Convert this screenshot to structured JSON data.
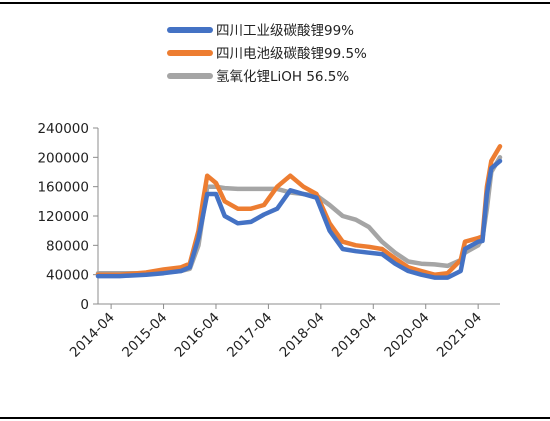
{
  "chart_data": {
    "type": "line",
    "title": "",
    "xlabel": "",
    "ylabel": "",
    "ylim": [
      0,
      240000
    ],
    "xlim": [
      "2014-01",
      "2021-09"
    ],
    "yticks": [
      "0",
      "40000",
      "80000",
      "120000",
      "160000",
      "200000",
      "240000"
    ],
    "xticks": [
      "2014-04",
      "2015-04",
      "2016-04",
      "2017-04",
      "2018-04",
      "2019-04",
      "2020-04",
      "2021-04"
    ],
    "legend_position": "top-center",
    "grid": false,
    "series": [
      {
        "name": "四川工业级碳酸锂99%",
        "color": "#4472C4",
        "points": [
          [
            "2014-01",
            38000
          ],
          [
            "2014-06",
            38000
          ],
          [
            "2014-12",
            40000
          ],
          [
            "2015-04",
            42000
          ],
          [
            "2015-08",
            45000
          ],
          [
            "2015-10",
            50000
          ],
          [
            "2015-12",
            90000
          ],
          [
            "2016-01",
            120000
          ],
          [
            "2016-02",
            150000
          ],
          [
            "2016-04",
            150000
          ],
          [
            "2016-06",
            120000
          ],
          [
            "2016-09",
            110000
          ],
          [
            "2016-12",
            112000
          ],
          [
            "2017-03",
            122000
          ],
          [
            "2017-06",
            130000
          ],
          [
            "2017-09",
            155000
          ],
          [
            "2017-12",
            150000
          ],
          [
            "2018-03",
            145000
          ],
          [
            "2018-06",
            100000
          ],
          [
            "2018-09",
            75000
          ],
          [
            "2018-12",
            72000
          ],
          [
            "2019-03",
            70000
          ],
          [
            "2019-06",
            68000
          ],
          [
            "2019-09",
            55000
          ],
          [
            "2019-12",
            45000
          ],
          [
            "2020-03",
            40000
          ],
          [
            "2020-06",
            36000
          ],
          [
            "2020-09",
            36000
          ],
          [
            "2020-12",
            45000
          ],
          [
            "2021-01",
            75000
          ],
          [
            "2021-04",
            85000
          ],
          [
            "2021-05",
            86000
          ],
          [
            "2021-06",
            150000
          ],
          [
            "2021-07",
            185000
          ],
          [
            "2021-09",
            195000
          ]
        ]
      },
      {
        "name": "四川电池级碳酸锂99.5%",
        "color": "#ED7D31",
        "points": [
          [
            "2014-01",
            40000
          ],
          [
            "2014-06",
            40000
          ],
          [
            "2014-12",
            43000
          ],
          [
            "2015-04",
            47000
          ],
          [
            "2015-08",
            50000
          ],
          [
            "2015-10",
            55000
          ],
          [
            "2015-12",
            100000
          ],
          [
            "2016-01",
            140000
          ],
          [
            "2016-02",
            175000
          ],
          [
            "2016-04",
            165000
          ],
          [
            "2016-06",
            140000
          ],
          [
            "2016-09",
            130000
          ],
          [
            "2016-12",
            130000
          ],
          [
            "2017-03",
            135000
          ],
          [
            "2017-06",
            160000
          ],
          [
            "2017-09",
            175000
          ],
          [
            "2017-12",
            160000
          ],
          [
            "2018-03",
            150000
          ],
          [
            "2018-06",
            110000
          ],
          [
            "2018-09",
            85000
          ],
          [
            "2018-12",
            80000
          ],
          [
            "2019-03",
            78000
          ],
          [
            "2019-06",
            75000
          ],
          [
            "2019-09",
            62000
          ],
          [
            "2019-12",
            50000
          ],
          [
            "2020-03",
            45000
          ],
          [
            "2020-06",
            40000
          ],
          [
            "2020-09",
            42000
          ],
          [
            "2020-12",
            60000
          ],
          [
            "2021-01",
            85000
          ],
          [
            "2021-04",
            90000
          ],
          [
            "2021-05",
            92000
          ],
          [
            "2021-06",
            160000
          ],
          [
            "2021-07",
            195000
          ],
          [
            "2021-09",
            215000
          ]
        ]
      },
      {
        "name": "氢氧化锂LiOH 56.5%",
        "color": "#A5A5A5",
        "points": [
          [
            "2014-01",
            42000
          ],
          [
            "2014-06",
            42000
          ],
          [
            "2014-12",
            42000
          ],
          [
            "2015-04",
            43000
          ],
          [
            "2015-08",
            45000
          ],
          [
            "2015-10",
            48000
          ],
          [
            "2015-12",
            80000
          ],
          [
            "2016-01",
            120000
          ],
          [
            "2016-02",
            160000
          ],
          [
            "2016-04",
            160000
          ],
          [
            "2016-06",
            158000
          ],
          [
            "2016-09",
            157000
          ],
          [
            "2016-12",
            157000
          ],
          [
            "2017-03",
            157000
          ],
          [
            "2017-06",
            157000
          ],
          [
            "2017-09",
            152000
          ],
          [
            "2017-12",
            150000
          ],
          [
            "2018-03",
            148000
          ],
          [
            "2018-06",
            135000
          ],
          [
            "2018-09",
            120000
          ],
          [
            "2018-12",
            115000
          ],
          [
            "2019-03",
            105000
          ],
          [
            "2019-06",
            85000
          ],
          [
            "2019-09",
            70000
          ],
          [
            "2019-12",
            58000
          ],
          [
            "2020-03",
            55000
          ],
          [
            "2020-06",
            54000
          ],
          [
            "2020-09",
            52000
          ],
          [
            "2020-12",
            60000
          ],
          [
            "2021-01",
            70000
          ],
          [
            "2021-04",
            80000
          ],
          [
            "2021-05",
            90000
          ],
          [
            "2021-06",
            130000
          ],
          [
            "2021-07",
            180000
          ],
          [
            "2021-09",
            200000
          ]
        ]
      }
    ]
  }
}
